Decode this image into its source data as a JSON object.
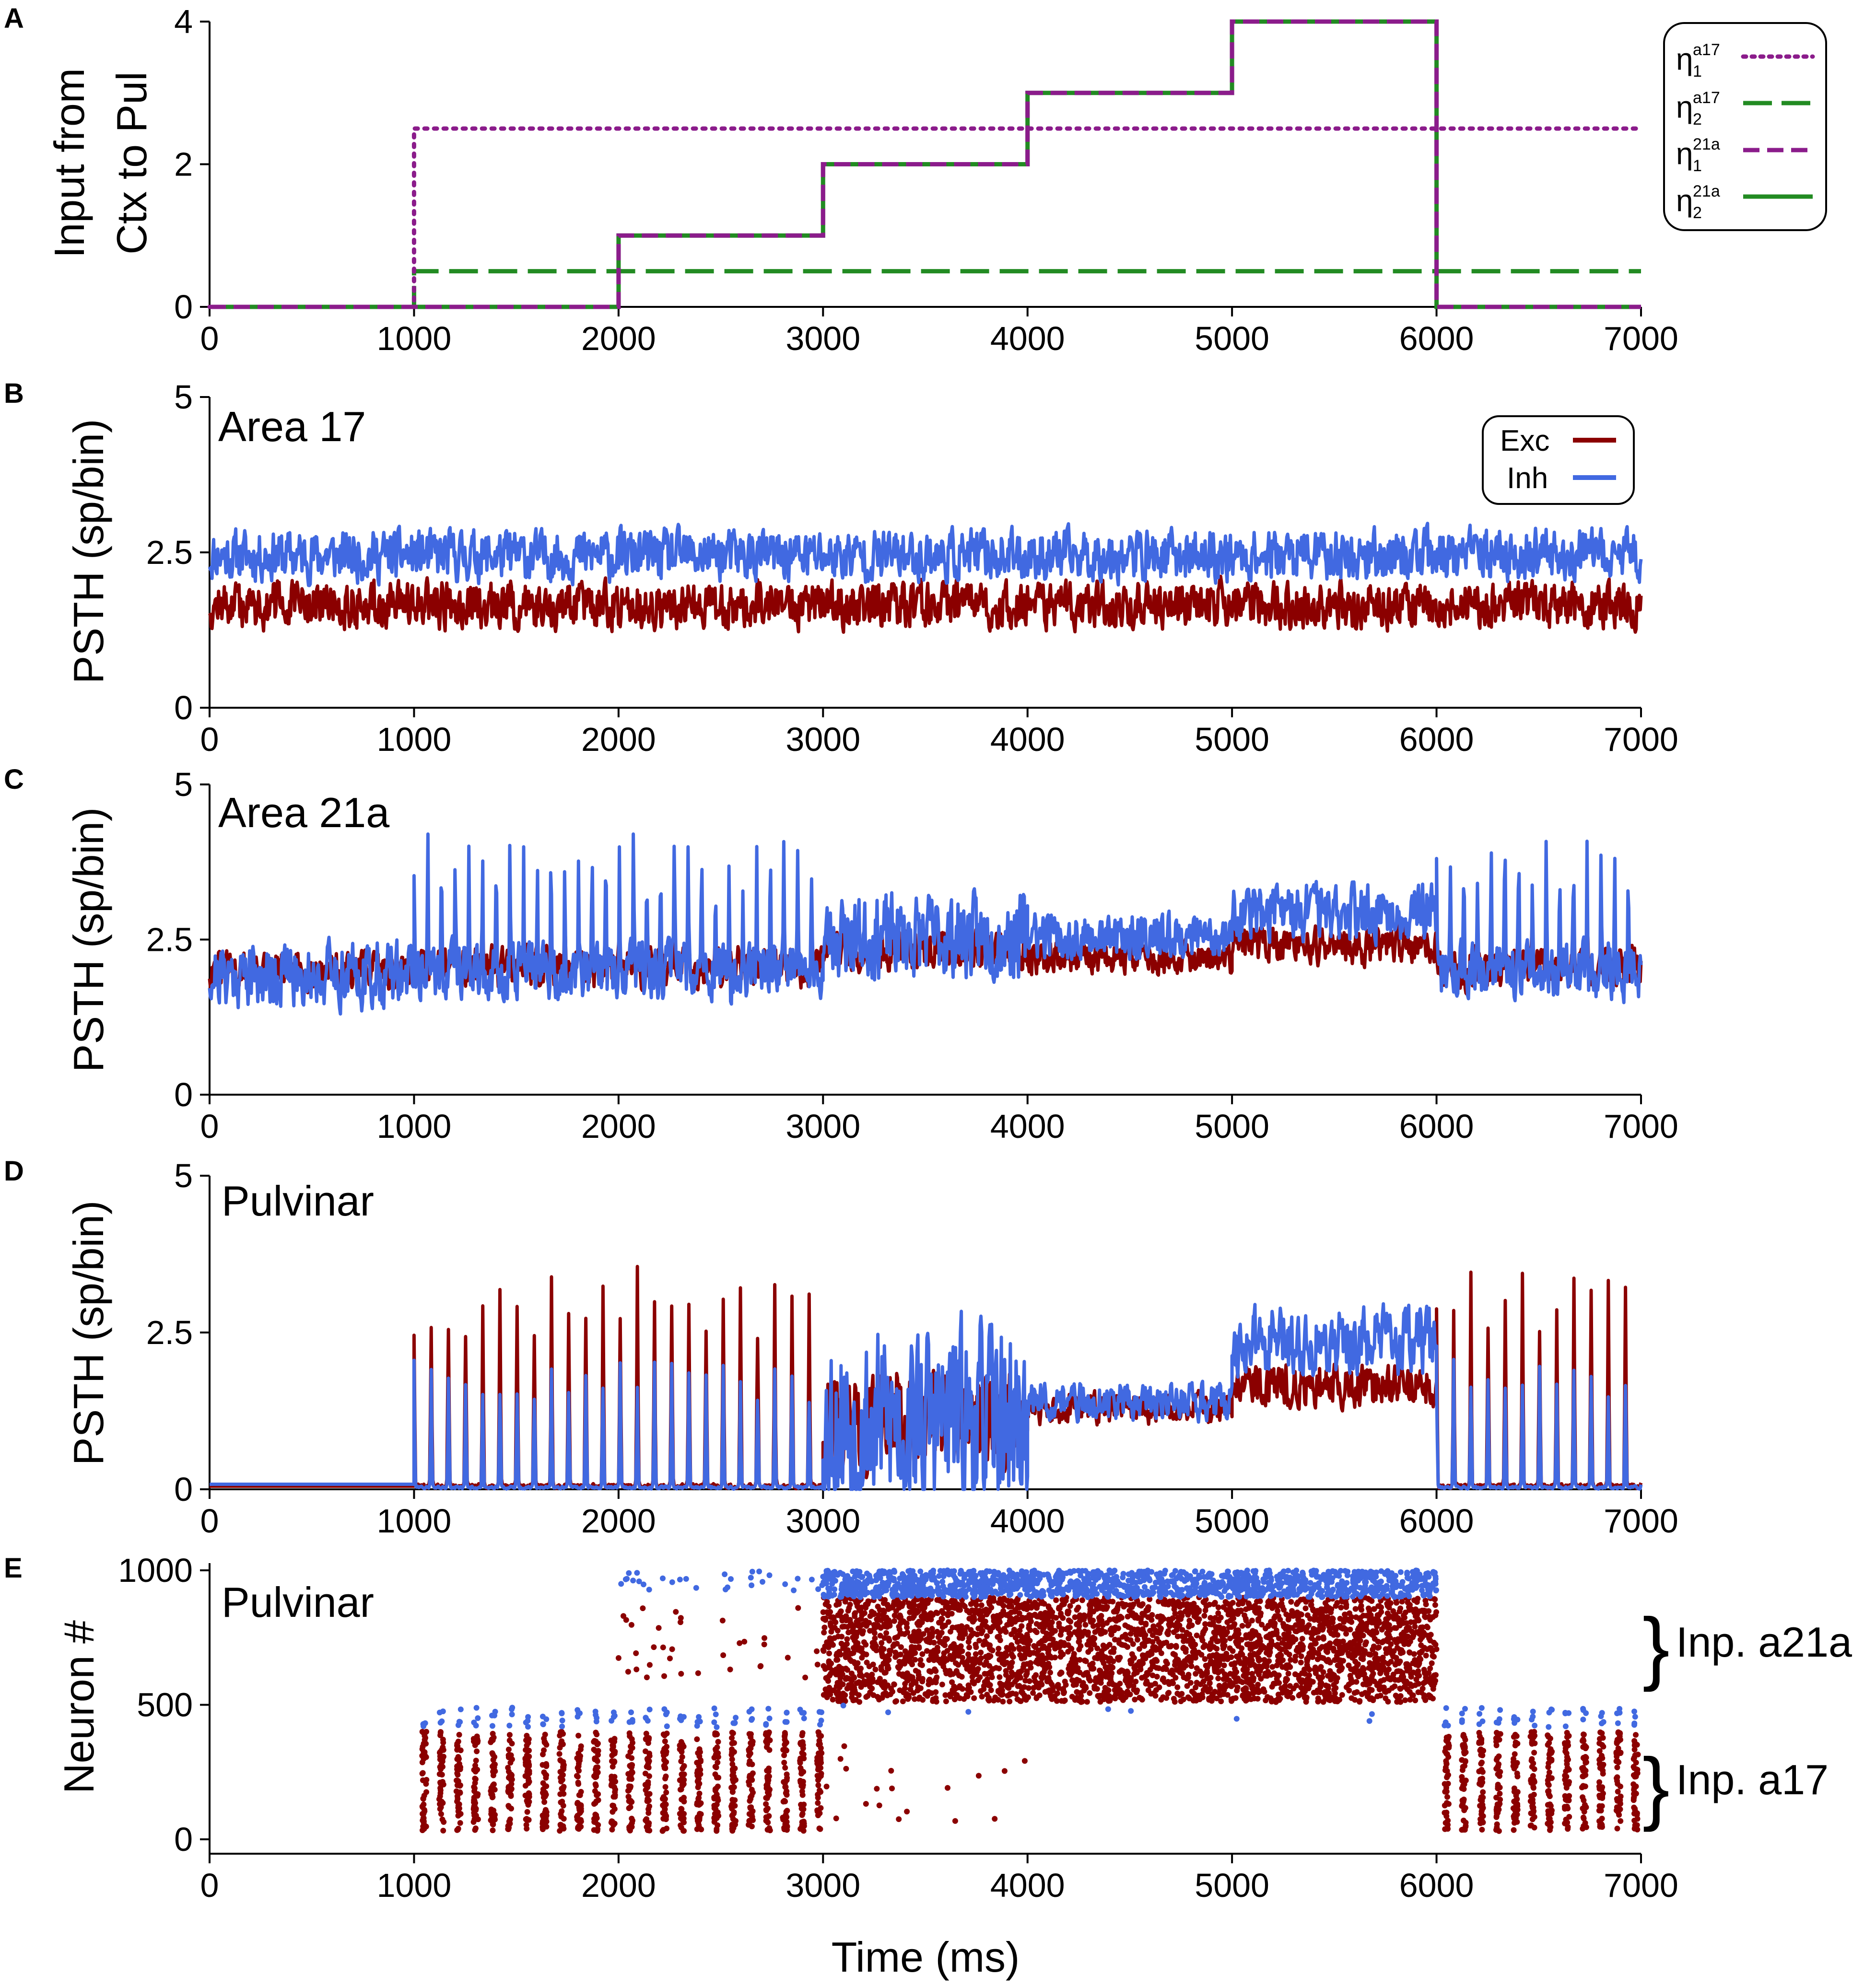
{
  "colors": {
    "exc": "#8B0000",
    "inh": "#4169E1",
    "purple": "#8B1C8B",
    "green": "#228B22",
    "axis": "#000000"
  },
  "chart_data": [
    {
      "id": "A",
      "panel_label": "A",
      "type": "line",
      "ylabel_line1": "Input  from",
      "ylabel_line2": "Ctx  to  Pul",
      "xlim": [
        0,
        7000
      ],
      "ylim": [
        0,
        4
      ],
      "xticks": [
        "0",
        "1000",
        "2000",
        "3000",
        "4000",
        "5000",
        "6000",
        "7000"
      ],
      "yticks": [
        "0",
        "2",
        "4"
      ],
      "series": [
        {
          "name": "eta1_a17",
          "sym": "η",
          "sub": "1",
          "sup": "a17",
          "style": "dotted",
          "color": "#8B1C8B",
          "x": [
            0,
            1000,
            1000,
            7000
          ],
          "y": [
            0,
            0,
            2.5,
            2.5
          ]
        },
        {
          "name": "eta2_a17",
          "sym": "η",
          "sub": "2",
          "sup": "a17",
          "style": "longdash",
          "color": "#228B22",
          "x": [
            0,
            1000,
            1000,
            7000
          ],
          "y": [
            0,
            0,
            0.5,
            0.5
          ]
        },
        {
          "name": "eta1_21a",
          "sym": "η",
          "sub": "1",
          "sup": "21a",
          "style": "dash",
          "color": "#8B1C8B",
          "x": [
            0,
            2000,
            2000,
            3000,
            3000,
            4000,
            4000,
            5000,
            5000,
            6000,
            6000,
            7000
          ],
          "y": [
            0,
            0,
            1,
            1,
            2,
            2,
            3,
            3,
            4,
            4,
            0,
            0
          ]
        },
        {
          "name": "eta2_21a",
          "sym": "η",
          "sub": "2",
          "sup": "21a",
          "style": "solid",
          "color": "#228B22",
          "x": [
            0,
            2000,
            2000,
            3000,
            3000,
            4000,
            4000,
            5000,
            5000,
            6000,
            6000,
            7000
          ],
          "y": [
            0,
            0,
            1,
            1,
            2,
            2,
            3,
            3,
            4,
            4,
            0,
            0
          ]
        }
      ]
    },
    {
      "id": "B",
      "panel_label": "B",
      "type": "line",
      "title": "Area  17",
      "ylabel": "PSTH  (sp/bin)",
      "xlim": [
        0,
        7000
      ],
      "ylim": [
        0,
        5
      ],
      "xticks": [
        "0",
        "1000",
        "2000",
        "3000",
        "4000",
        "5000",
        "6000",
        "7000"
      ],
      "yticks": [
        "0",
        "2.5",
        "5"
      ],
      "legend": [
        {
          "label": "Exc",
          "color": "#8B0000"
        },
        {
          "label": "Inh",
          "color": "#4169E1"
        }
      ],
      "segments": {
        "inh": [
          {
            "x0": 0,
            "x1": 7000,
            "mean": 2.45,
            "noise": 0.55,
            "seed": 11
          }
        ],
        "exc": [
          {
            "x0": 0,
            "x1": 7000,
            "mean": 1.65,
            "noise": 0.5,
            "seed": 12
          }
        ]
      }
    },
    {
      "id": "C",
      "panel_label": "C",
      "type": "line",
      "title": "Area  21a",
      "ylabel": "PSTH  (sp/bin)",
      "xlim": [
        0,
        7000
      ],
      "ylim": [
        0,
        5
      ],
      "xticks": [
        "0",
        "1000",
        "2000",
        "3000",
        "4000",
        "5000",
        "6000",
        "7000"
      ],
      "yticks": [
        "0",
        "2.5",
        "5"
      ],
      "segments": {
        "inh": [
          {
            "x0": 0,
            "x1": 1000,
            "mean": 1.95,
            "noise": 0.7,
            "seed": 21
          },
          {
            "x0": 1000,
            "x1": 3000,
            "mean": 2.0,
            "noise": 0.6,
            "seed": 22,
            "spike_period": 67,
            "spike_amp": 1.9
          },
          {
            "x0": 3000,
            "x1": 4000,
            "mean": 2.55,
            "noise": 0.9,
            "seed": 23
          },
          {
            "x0": 4000,
            "x1": 5000,
            "mean": 2.55,
            "noise": 0.5,
            "seed": 24
          },
          {
            "x0": 5000,
            "x1": 6000,
            "mean": 2.95,
            "noise": 0.6,
            "seed": 25
          },
          {
            "x0": 6000,
            "x1": 7000,
            "mean": 2.0,
            "noise": 0.6,
            "seed": 26,
            "spike_period": 67,
            "spike_amp": 1.9
          }
        ],
        "exc": [
          {
            "x0": 0,
            "x1": 1000,
            "mean": 2.0,
            "noise": 0.4,
            "seed": 31
          },
          {
            "x0": 1000,
            "x1": 3000,
            "mean": 2.05,
            "noise": 0.45,
            "seed": 32,
            "spike_period": 67,
            "spike_amp": 0.7
          },
          {
            "x0": 3000,
            "x1": 4000,
            "mean": 2.35,
            "noise": 0.45,
            "seed": 33
          },
          {
            "x0": 4000,
            "x1": 5000,
            "mean": 2.2,
            "noise": 0.35,
            "seed": 34
          },
          {
            "x0": 5000,
            "x1": 6000,
            "mean": 2.4,
            "noise": 0.4,
            "seed": 35
          },
          {
            "x0": 6000,
            "x1": 7000,
            "mean": 2.05,
            "noise": 0.45,
            "seed": 36,
            "spike_period": 67,
            "spike_amp": 0.6
          }
        ]
      }
    },
    {
      "id": "D",
      "panel_label": "D",
      "type": "line",
      "title": "Pulvinar",
      "ylabel": "PSTH  (sp/bin)",
      "xlim": [
        0,
        7000
      ],
      "ylim": [
        0,
        5
      ],
      "xticks": [
        "0",
        "1000",
        "2000",
        "3000",
        "4000",
        "5000",
        "6000",
        "7000"
      ],
      "yticks": [
        "0",
        "2.5",
        "5"
      ],
      "segments": {
        "exc": [
          {
            "x0": 0,
            "x1": 1000,
            "mean": 0.05,
            "noise": 0.0,
            "seed": 41
          },
          {
            "x0": 1000,
            "x1": 3000,
            "mean": 0.05,
            "noise": 0.05,
            "seed": 42,
            "spike_period": 84,
            "spike_amp": 2.9
          },
          {
            "x0": 3000,
            "x1": 4000,
            "mean": 1.1,
            "noise": 1.1,
            "seed": 43
          },
          {
            "x0": 4000,
            "x1": 5000,
            "mean": 1.3,
            "noise": 0.35,
            "seed": 44
          },
          {
            "x0": 5000,
            "x1": 6000,
            "mean": 1.65,
            "noise": 0.45,
            "seed": 45
          },
          {
            "x0": 6000,
            "x1": 7000,
            "mean": 0.05,
            "noise": 0.05,
            "seed": 46,
            "spike_period": 84,
            "spike_amp": 2.9
          }
        ],
        "inh": [
          {
            "x0": 0,
            "x1": 1000,
            "mean": 0.08,
            "noise": 0.0,
            "seed": 51
          },
          {
            "x0": 1000,
            "x1": 3000,
            "mean": 0.03,
            "noise": 0.03,
            "seed": 52,
            "spike_period": 84,
            "spike_amp": 1.7
          },
          {
            "x0": 3000,
            "x1": 4000,
            "mean": 1.1,
            "noise": 2.0,
            "seed": 53
          },
          {
            "x0": 4000,
            "x1": 5000,
            "mean": 1.4,
            "noise": 0.4,
            "seed": 54
          },
          {
            "x0": 5000,
            "x1": 6000,
            "mean": 2.35,
            "noise": 0.7,
            "seed": 55
          },
          {
            "x0": 6000,
            "x1": 7000,
            "mean": 0.03,
            "noise": 0.03,
            "seed": 56,
            "spike_period": 84,
            "spike_amp": 1.7
          }
        ]
      }
    },
    {
      "id": "E",
      "panel_label": "E",
      "type": "scatter",
      "title": "Pulvinar",
      "ylabel": "Neuron  #",
      "xlabel": "Time  (ms)",
      "xlim": [
        0,
        7000
      ],
      "ylim": [
        0,
        1000
      ],
      "xticks": [
        "0",
        "1000",
        "2000",
        "3000",
        "4000",
        "5000",
        "6000",
        "7000"
      ],
      "yticks": [
        "0",
        "500",
        "1000"
      ],
      "groups": [
        {
          "label": "Inp. a21a",
          "neurons": [
            500,
            1000
          ]
        },
        {
          "label": "Inp. a17",
          "neurons": [
            0,
            500
          ]
        }
      ],
      "raster_blocks": [
        {
          "kind": "dense",
          "color": "exc",
          "x0": 3000,
          "x1": 6000,
          "n0": 510,
          "n1": 900,
          "count": 3200,
          "seed": 61
        },
        {
          "kind": "dense",
          "color": "inh",
          "x0": 3000,
          "x1": 6000,
          "n0": 900,
          "n1": 1000,
          "count": 1400,
          "seed": 62
        },
        {
          "kind": "bursts",
          "color": "exc",
          "x0": 1050,
          "x1": 3000,
          "period": 84,
          "n0": 30,
          "n1": 400,
          "per_burst": 45,
          "seed": 63
        },
        {
          "kind": "bursts",
          "color": "exc",
          "x0": 6050,
          "x1": 7000,
          "period": 84,
          "n0": 30,
          "n1": 400,
          "per_burst": 45,
          "seed": 64
        },
        {
          "kind": "bursts",
          "color": "inh",
          "x0": 1050,
          "x1": 3000,
          "period": 84,
          "n0": 415,
          "n1": 490,
          "per_burst": 4,
          "seed": 65
        },
        {
          "kind": "bursts",
          "color": "inh",
          "x0": 6050,
          "x1": 7000,
          "period": 84,
          "n0": 415,
          "n1": 490,
          "per_burst": 4,
          "seed": 66
        },
        {
          "kind": "sparse",
          "color": "exc",
          "x0": 2000,
          "x1": 3000,
          "n0": 600,
          "n1": 900,
          "count": 35,
          "seed": 67
        },
        {
          "kind": "sparse",
          "color": "inh",
          "x0": 2000,
          "x1": 3000,
          "n0": 920,
          "n1": 1000,
          "count": 30,
          "seed": 68
        },
        {
          "kind": "sparse",
          "color": "exc",
          "x0": 3000,
          "x1": 4000,
          "n0": 0,
          "n1": 350,
          "count": 18,
          "seed": 69
        },
        {
          "kind": "sparse",
          "color": "inh",
          "x0": 3000,
          "x1": 5700,
          "n0": 430,
          "n1": 500,
          "count": 8,
          "seed": 70
        }
      ]
    }
  ]
}
